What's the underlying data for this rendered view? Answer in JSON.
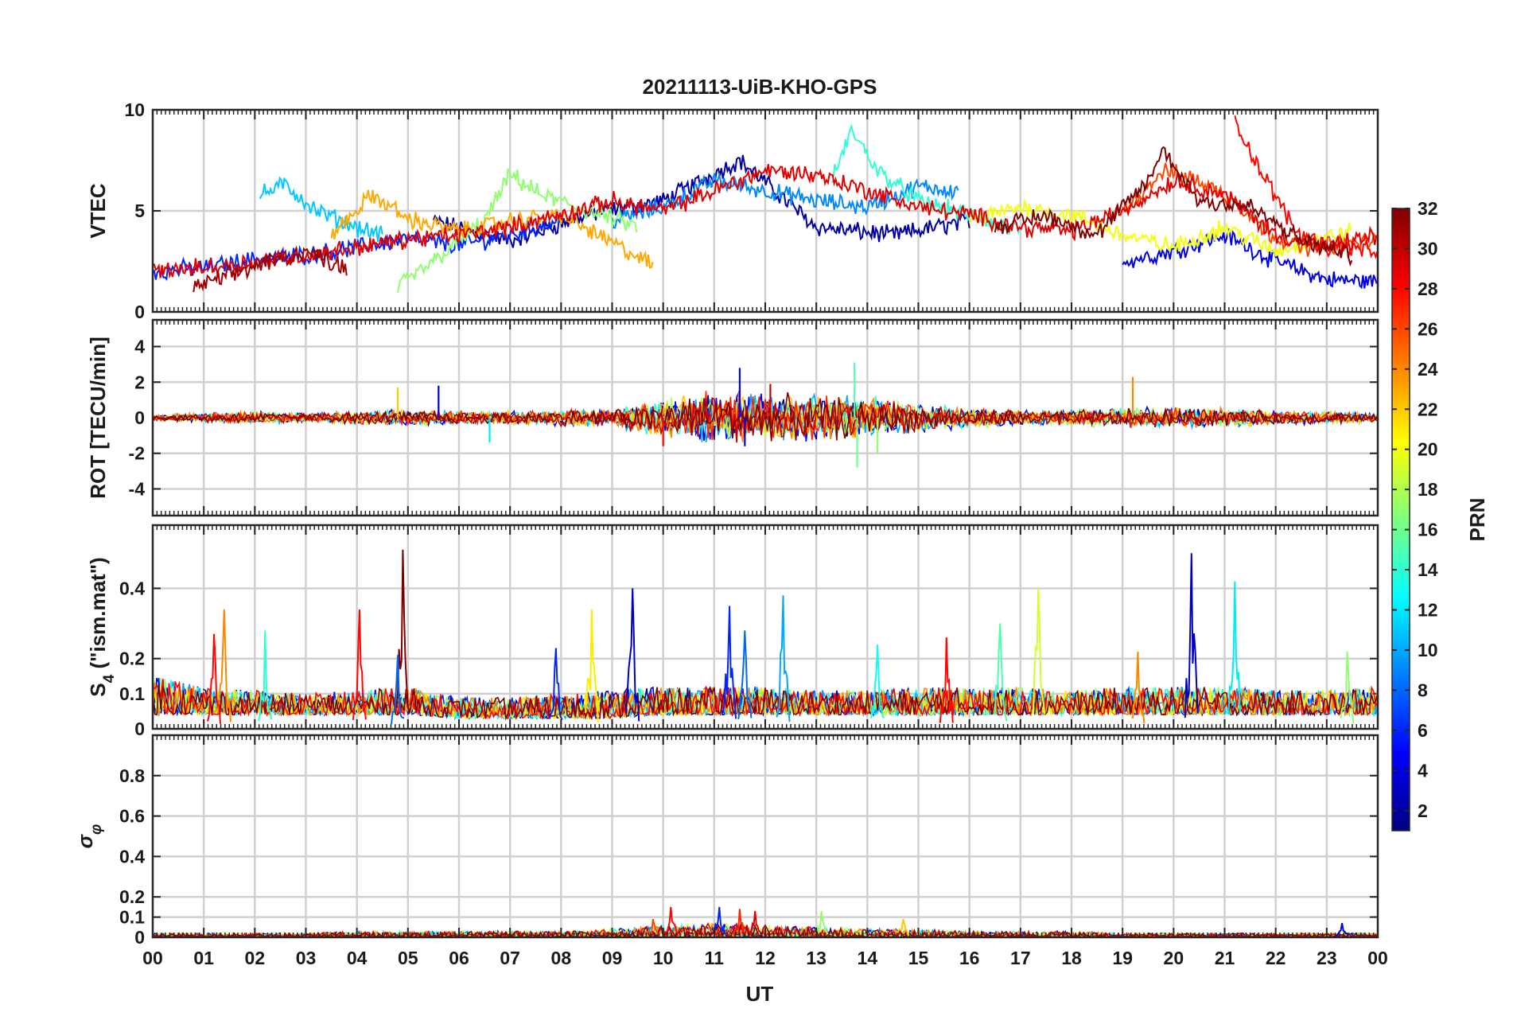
{
  "chart_data": {
    "type": "line",
    "title": "20211113-UiB-KHO-GPS",
    "xlabel": "UT",
    "x_ticks": [
      "00",
      "01",
      "02",
      "03",
      "04",
      "05",
      "06",
      "07",
      "08",
      "09",
      "10",
      "11",
      "12",
      "13",
      "14",
      "15",
      "16",
      "17",
      "18",
      "19",
      "20",
      "21",
      "22",
      "23",
      "00"
    ],
    "x_range_hours": [
      0,
      24
    ],
    "grid": true,
    "colorbar": {
      "label": "PRN",
      "range": [
        1,
        32
      ],
      "ticks": [
        "2",
        "4",
        "6",
        "8",
        "10",
        "12",
        "14",
        "16",
        "18",
        "20",
        "22",
        "24",
        "26",
        "28",
        "30",
        "32"
      ],
      "colormap": "jet",
      "stops": [
        "#00007f",
        "#0000ff",
        "#007fff",
        "#00ffff",
        "#7fff7f",
        "#ffff00",
        "#ff7f00",
        "#ff0000",
        "#7f0000"
      ]
    },
    "panels": [
      {
        "id": "vtec",
        "ylabel": "VTEC",
        "ylim": [
          0,
          10
        ],
        "yticks": [
          "0",
          "5",
          "10"
        ],
        "series": [
          {
            "prn": 2,
            "x": [
              5.5,
              7,
              8.5,
              10,
              11.5,
              13,
              14.5,
              16
            ],
            "y": [
              4.5,
              3.5,
              4.8,
              5.5,
              7.5,
              4.2,
              3.8,
              4.5
            ]
          },
          {
            "prn": 4,
            "x": [
              19,
              20,
              21,
              22,
              23,
              24
            ],
            "y": [
              2.5,
              3.0,
              3.8,
              2.5,
              1.6,
              1.5
            ]
          },
          {
            "prn": 6,
            "x": [
              0,
              1,
              2,
              3,
              4,
              5,
              6,
              7,
              8
            ],
            "y": [
              2.0,
              2.2,
              2.6,
              2.8,
              3.2,
              3.6,
              3.3,
              3.8,
              4.5
            ]
          },
          {
            "prn": 9,
            "x": [
              9,
              10,
              11,
              12,
              13,
              14,
              15,
              15.8
            ],
            "y": [
              4.5,
              5.2,
              6.5,
              6.0,
              5.5,
              5.2,
              6.2,
              6.0
            ]
          },
          {
            "prn": 11,
            "x": [
              2.1,
              2.6,
              3.2,
              4.0,
              4.5
            ],
            "y": [
              5.8,
              6.3,
              5.0,
              4.2,
              3.8
            ]
          },
          {
            "prn": 14,
            "x": [
              13.3,
              13.7,
              14.2,
              15,
              16,
              17
            ],
            "y": [
              6.5,
              9.0,
              7.0,
              5.5,
              4.8,
              4.0
            ]
          },
          {
            "prn": 17,
            "x": [
              4.8,
              5.5,
              6.5,
              7,
              7.6,
              8.5,
              9.5
            ],
            "y": [
              1.2,
              2.5,
              4.5,
              6.8,
              5.8,
              5.0,
              4.2
            ]
          },
          {
            "prn": 20,
            "x": [
              16,
              17,
              18,
              19,
              20,
              21,
              22,
              23.5
            ],
            "y": [
              4.5,
              5.2,
              4.8,
              3.8,
              3.2,
              4.2,
              3.0,
              4.0
            ]
          },
          {
            "prn": 23,
            "x": [
              3.5,
              4.3,
              5,
              6,
              7,
              8,
              9.8
            ],
            "y": [
              3.8,
              5.8,
              4.6,
              4.0,
              4.5,
              4.8,
              2.3
            ]
          },
          {
            "prn": 26,
            "x": [
              19,
              19.8,
              20.5,
              21.2,
              21.8,
              22.5,
              24
            ],
            "y": [
              5.0,
              7.0,
              6.5,
              5.5,
              4.0,
              3.2,
              3.5
            ]
          },
          {
            "prn": 28,
            "x": [
              21.2,
              21.7,
              22.4,
              23,
              24
            ],
            "y": [
              9.5,
              7.0,
              4.0,
              3.2,
              3.0
            ]
          },
          {
            "prn": 29,
            "x": [
              0,
              1,
              2,
              3,
              4,
              5,
              6,
              7,
              8,
              9,
              10,
              11,
              12,
              13,
              14,
              15,
              16,
              17,
              18,
              19,
              20,
              21,
              22,
              23,
              24
            ],
            "y": [
              2.0,
              2.2,
              2.5,
              2.8,
              3.2,
              3.6,
              3.8,
              4.2,
              4.8,
              5.5,
              5.0,
              6.0,
              7.0,
              6.8,
              6.0,
              5.2,
              4.8,
              4.2,
              4.0,
              5.0,
              6.5,
              5.8,
              3.8,
              3.2,
              3.8
            ]
          },
          {
            "prn": 31,
            "x": [
              0.8,
              1.5,
              2.3,
              3.0,
              3.8
            ],
            "y": [
              1.2,
              1.8,
              2.5,
              3.0,
              2.2
            ]
          },
          {
            "prn": 32,
            "x": [
              16.5,
              17.5,
              18.5,
              19.5,
              19.8,
              20.5,
              21.5,
              22.5,
              23.5
            ],
            "y": [
              4.2,
              4.8,
              3.8,
              6.5,
              8.0,
              5.5,
              5.2,
              3.5,
              2.8
            ]
          }
        ]
      },
      {
        "id": "rot",
        "ylabel": "ROT [TECU/min]",
        "ylim": [
          -5.5,
          5.5
        ],
        "yticks": [
          "-4",
          "-2",
          "0",
          "2",
          "4"
        ],
        "envelope": {
          "x": [
            0,
            1,
            2,
            3,
            4,
            5,
            6,
            7,
            8,
            9,
            10,
            11,
            12,
            13,
            14,
            15,
            16,
            17,
            18,
            19,
            20,
            21,
            22,
            23,
            24
          ],
          "amp": [
            0.2,
            0.3,
            0.4,
            0.3,
            0.4,
            0.5,
            0.4,
            0.4,
            0.5,
            0.6,
            1.2,
            1.6,
            1.4,
            1.5,
            1.3,
            0.9,
            0.6,
            0.5,
            0.5,
            0.6,
            0.6,
            0.6,
            0.4,
            0.4,
            0.3
          ]
        },
        "spikes": [
          {
            "x": 5.6,
            "y": 1.8,
            "prn": 3
          },
          {
            "x": 4.8,
            "y": 1.7,
            "prn": 22
          },
          {
            "x": 11.5,
            "y": 2.8,
            "prn": 5
          },
          {
            "x": 11.6,
            "y": -1.6,
            "prn": 4
          },
          {
            "x": 13.75,
            "y": 3.1,
            "prn": 15
          },
          {
            "x": 13.8,
            "y": -2.8,
            "prn": 16
          },
          {
            "x": 14.2,
            "y": -2.0,
            "prn": 17
          },
          {
            "x": 19.2,
            "y": 2.3,
            "prn": 24
          },
          {
            "x": 6.6,
            "y": -1.4,
            "prn": 12
          },
          {
            "x": 10.0,
            "y": -1.6,
            "prn": 28
          },
          {
            "x": 12.1,
            "y": 1.9,
            "prn": 30
          }
        ]
      },
      {
        "id": "s4",
        "ylabel_main": "S",
        "ylabel_sub": "4",
        "ylabel_rest": " (\"ism.mat\")",
        "ylim": [
          0,
          0.58
        ],
        "yticks": [
          "0",
          "0.1",
          "0.2",
          "0.4"
        ],
        "baseline_envelope": {
          "x": [
            0,
            1,
            2,
            3,
            4,
            5,
            6,
            7,
            8,
            9,
            10,
            11,
            12,
            13,
            14,
            15,
            16,
            17,
            18,
            19,
            20,
            21,
            22,
            23,
            24
          ],
          "lo": [
            0.04,
            0.04,
            0.04,
            0.04,
            0.04,
            0.04,
            0.03,
            0.03,
            0.03,
            0.03,
            0.04,
            0.04,
            0.04,
            0.04,
            0.04,
            0.04,
            0.04,
            0.04,
            0.04,
            0.04,
            0.04,
            0.04,
            0.04,
            0.04,
            0.04
          ],
          "hi": [
            0.15,
            0.12,
            0.11,
            0.1,
            0.11,
            0.12,
            0.09,
            0.09,
            0.1,
            0.11,
            0.12,
            0.12,
            0.12,
            0.11,
            0.11,
            0.12,
            0.12,
            0.12,
            0.11,
            0.12,
            0.12,
            0.12,
            0.11,
            0.11,
            0.12
          ]
        },
        "spikes": [
          {
            "x": 1.4,
            "y": 0.34,
            "prn": 24
          },
          {
            "x": 1.2,
            "y": 0.27,
            "prn": 28
          },
          {
            "x": 4.05,
            "y": 0.34,
            "prn": 28
          },
          {
            "x": 4.9,
            "y": 0.51,
            "prn": 32
          },
          {
            "x": 4.8,
            "y": 0.21,
            "prn": 8
          },
          {
            "x": 9.4,
            "y": 0.4,
            "prn": 3
          },
          {
            "x": 8.6,
            "y": 0.34,
            "prn": 21
          },
          {
            "x": 11.3,
            "y": 0.35,
            "prn": 6
          },
          {
            "x": 12.35,
            "y": 0.38,
            "prn": 10
          },
          {
            "x": 11.6,
            "y": 0.28,
            "prn": 8
          },
          {
            "x": 15.55,
            "y": 0.26,
            "prn": 28
          },
          {
            "x": 16.6,
            "y": 0.3,
            "prn": 15
          },
          {
            "x": 17.35,
            "y": 0.4,
            "prn": 19
          },
          {
            "x": 20.35,
            "y": 0.5,
            "prn": 3
          },
          {
            "x": 21.2,
            "y": 0.42,
            "prn": 12
          },
          {
            "x": 19.3,
            "y": 0.22,
            "prn": 24
          },
          {
            "x": 23.4,
            "y": 0.22,
            "prn": 17
          },
          {
            "x": 2.2,
            "y": 0.28,
            "prn": 14
          },
          {
            "x": 7.9,
            "y": 0.23,
            "prn": 6
          },
          {
            "x": 14.2,
            "y": 0.24,
            "prn": 13
          }
        ]
      },
      {
        "id": "sigma",
        "ylabel": "σ",
        "ylabel_sub": "φ",
        "ylim": [
          0,
          1
        ],
        "yticks": [
          "0",
          "0.1",
          "0.2",
          "0.4",
          "0.6",
          "0.8"
        ],
        "baseline_envelope": {
          "x": [
            0,
            1,
            2,
            3,
            4,
            5,
            6,
            7,
            8,
            9,
            10,
            11,
            12,
            13,
            14,
            15,
            16,
            17,
            18,
            19,
            20,
            21,
            22,
            23,
            24
          ],
          "hi": [
            0.02,
            0.02,
            0.02,
            0.02,
            0.03,
            0.03,
            0.03,
            0.03,
            0.03,
            0.04,
            0.06,
            0.07,
            0.06,
            0.05,
            0.04,
            0.04,
            0.03,
            0.03,
            0.03,
            0.02,
            0.02,
            0.02,
            0.02,
            0.02,
            0.02
          ]
        },
        "spikes": [
          {
            "x": 10.15,
            "y": 0.15,
            "prn": 28
          },
          {
            "x": 11.1,
            "y": 0.15,
            "prn": 6
          },
          {
            "x": 11.5,
            "y": 0.14,
            "prn": 27
          },
          {
            "x": 11.8,
            "y": 0.13,
            "prn": 29
          },
          {
            "x": 13.1,
            "y": 0.13,
            "prn": 17
          },
          {
            "x": 9.8,
            "y": 0.09,
            "prn": 26
          },
          {
            "x": 23.3,
            "y": 0.07,
            "prn": 4
          },
          {
            "x": 14.7,
            "y": 0.09,
            "prn": 22
          }
        ]
      }
    ]
  }
}
